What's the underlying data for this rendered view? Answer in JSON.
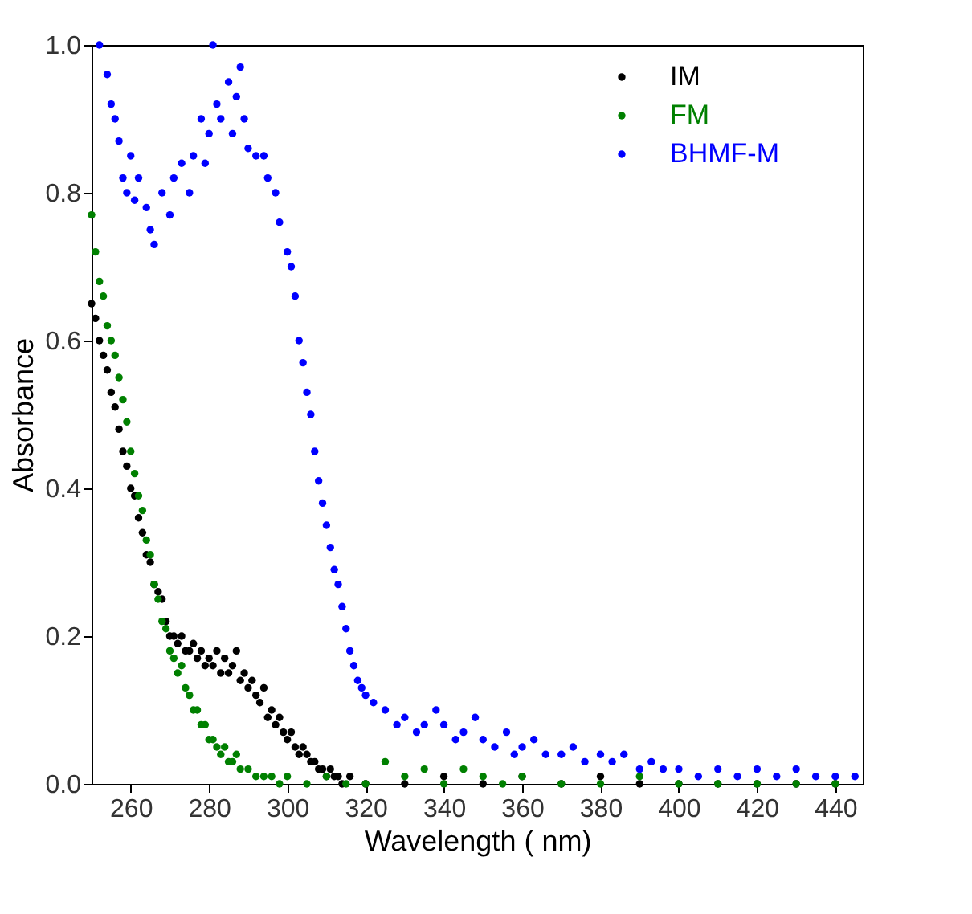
{
  "chart_data": {
    "type": "scatter",
    "xlabel": "Wavelength ( nm)",
    "ylabel": "Absorbance",
    "xlim": [
      250,
      447
    ],
    "ylim": [
      0,
      1.0
    ],
    "xticks": [
      260,
      280,
      300,
      320,
      340,
      360,
      380,
      400,
      420,
      440
    ],
    "yticks": [
      {
        "value": 0,
        "label": "0.0"
      },
      0.2,
      0.4,
      0.6,
      0.8,
      {
        "value": 1,
        "label": "1.0"
      }
    ],
    "grid": false,
    "legend": "top right",
    "marker": "circle",
    "series": [
      {
        "name": "IM",
        "color": "#000000",
        "x": [
          250,
          251,
          252,
          253,
          254,
          255,
          256,
          257,
          258,
          259,
          260,
          261,
          262,
          263,
          264,
          265,
          266,
          267,
          268,
          269,
          270,
          271,
          272,
          273,
          274,
          275,
          276,
          277,
          278,
          279,
          280,
          281,
          282,
          283,
          284,
          285,
          286,
          287,
          288,
          289,
          290,
          291,
          292,
          293,
          294,
          295,
          296,
          297,
          298,
          299,
          300,
          301,
          302,
          303,
          304,
          305,
          306,
          307,
          308,
          309,
          310,
          311,
          312,
          313,
          314,
          316,
          320,
          330,
          340,
          350,
          360,
          370,
          380,
          390,
          400,
          410,
          420,
          430,
          440
        ],
        "values": [
          0.65,
          0.63,
          0.6,
          0.58,
          0.56,
          0.53,
          0.51,
          0.48,
          0.45,
          0.43,
          0.4,
          0.39,
          0.36,
          0.34,
          0.31,
          0.3,
          0.27,
          0.26,
          0.25,
          0.22,
          0.2,
          0.2,
          0.19,
          0.2,
          0.18,
          0.18,
          0.19,
          0.17,
          0.18,
          0.16,
          0.17,
          0.16,
          0.18,
          0.15,
          0.17,
          0.15,
          0.16,
          0.18,
          0.14,
          0.15,
          0.13,
          0.14,
          0.12,
          0.11,
          0.13,
          0.09,
          0.1,
          0.08,
          0.09,
          0.07,
          0.06,
          0.07,
          0.05,
          0.04,
          0.05,
          0.04,
          0.03,
          0.03,
          0.02,
          0.02,
          0.01,
          0.02,
          0.01,
          0.01,
          0.0,
          0.01,
          0.0,
          0.0,
          0.01,
          0.0,
          0.01,
          0.0,
          0.01,
          0.0,
          0.0,
          0.0,
          0.0,
          0.0,
          0.0
        ]
      },
      {
        "name": "FM",
        "color": "#008000",
        "x": [
          250,
          251,
          252,
          253,
          254,
          255,
          256,
          257,
          258,
          259,
          260,
          261,
          262,
          263,
          264,
          265,
          266,
          267,
          268,
          269,
          270,
          271,
          272,
          273,
          274,
          275,
          276,
          277,
          278,
          279,
          280,
          281,
          282,
          283,
          284,
          285,
          286,
          287,
          288,
          290,
          292,
          294,
          296,
          298,
          300,
          305,
          310,
          315,
          320,
          325,
          330,
          335,
          340,
          345,
          350,
          355,
          360,
          370,
          380,
          390,
          400,
          410,
          420,
          430,
          440
        ],
        "values": [
          0.77,
          0.72,
          0.68,
          0.66,
          0.62,
          0.6,
          0.58,
          0.55,
          0.52,
          0.49,
          0.45,
          0.42,
          0.39,
          0.37,
          0.33,
          0.31,
          0.27,
          0.25,
          0.22,
          0.21,
          0.18,
          0.17,
          0.15,
          0.16,
          0.13,
          0.12,
          0.1,
          0.1,
          0.08,
          0.08,
          0.06,
          0.06,
          0.05,
          0.04,
          0.05,
          0.03,
          0.03,
          0.04,
          0.02,
          0.02,
          0.01,
          0.01,
          0.01,
          0.0,
          0.01,
          0.0,
          0.01,
          0.0,
          0.0,
          0.03,
          0.01,
          0.02,
          0.0,
          0.02,
          0.01,
          0.0,
          0.01,
          0.0,
          0.0,
          0.01,
          0.0,
          0.0,
          0.0,
          0.0,
          0.0
        ]
      },
      {
        "name": "BHMF-M",
        "color": "#0000ff",
        "x": [
          252,
          254,
          255,
          256,
          257,
          258,
          259,
          260,
          261,
          262,
          264,
          265,
          266,
          268,
          270,
          271,
          273,
          275,
          276,
          278,
          279,
          280,
          281,
          282,
          283,
          285,
          286,
          287,
          288,
          289,
          290,
          292,
          294,
          295,
          297,
          298,
          300,
          301,
          302,
          303,
          304,
          305,
          306,
          307,
          308,
          309,
          310,
          311,
          312,
          313,
          314,
          315,
          316,
          317,
          318,
          319,
          320,
          322,
          325,
          328,
          330,
          333,
          335,
          338,
          340,
          343,
          345,
          348,
          350,
          353,
          356,
          358,
          360,
          363,
          366,
          370,
          373,
          376,
          380,
          383,
          386,
          390,
          393,
          396,
          400,
          405,
          410,
          415,
          420,
          425,
          430,
          435,
          440,
          445
        ],
        "values": [
          1.0,
          0.96,
          0.92,
          0.9,
          0.87,
          0.82,
          0.8,
          0.85,
          0.79,
          0.82,
          0.78,
          0.75,
          0.73,
          0.8,
          0.77,
          0.82,
          0.84,
          0.8,
          0.85,
          0.9,
          0.84,
          0.88,
          1.0,
          0.92,
          0.9,
          0.95,
          0.88,
          0.93,
          0.97,
          0.9,
          0.86,
          0.85,
          0.85,
          0.82,
          0.8,
          0.76,
          0.72,
          0.7,
          0.66,
          0.6,
          0.57,
          0.53,
          0.5,
          0.45,
          0.41,
          0.38,
          0.35,
          0.32,
          0.29,
          0.27,
          0.24,
          0.21,
          0.18,
          0.16,
          0.14,
          0.13,
          0.12,
          0.11,
          0.1,
          0.08,
          0.09,
          0.07,
          0.08,
          0.1,
          0.08,
          0.06,
          0.07,
          0.09,
          0.06,
          0.05,
          0.07,
          0.04,
          0.05,
          0.06,
          0.04,
          0.04,
          0.05,
          0.03,
          0.04,
          0.03,
          0.04,
          0.02,
          0.03,
          0.02,
          0.02,
          0.01,
          0.02,
          0.01,
          0.02,
          0.01,
          0.02,
          0.01,
          0.01,
          0.01
        ]
      }
    ]
  }
}
